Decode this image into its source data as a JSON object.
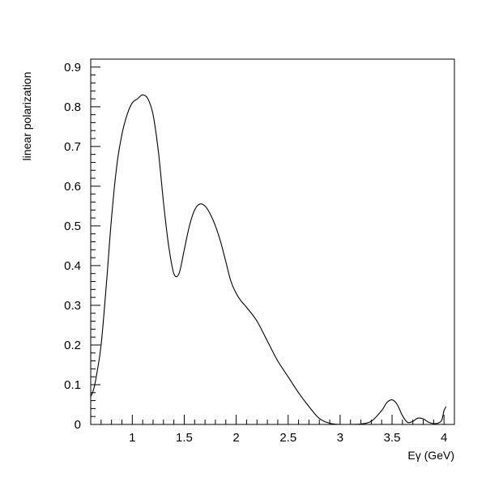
{
  "chart_data": {
    "type": "line",
    "title": "",
    "xlabel": "Eγ (GeV)",
    "ylabel": "linear polarization",
    "xlim": [
      0.6,
      4.1
    ],
    "ylim": [
      0,
      0.92
    ],
    "xticks": [
      1,
      1.5,
      2,
      2.5,
      3,
      3.5,
      4
    ],
    "xtick_labels": [
      "1",
      "1.5",
      "2",
      "2.5",
      "3",
      "3.5",
      "4"
    ],
    "yticks": [
      0,
      0.1,
      0.2,
      0.3,
      0.4,
      0.5,
      0.6,
      0.7,
      0.8,
      0.9
    ],
    "ytick_labels": [
      "0",
      "0.1",
      "0.2",
      "0.3",
      "0.4",
      "0.5",
      "0.6",
      "0.7",
      "0.8",
      "0.9"
    ],
    "grid": false,
    "legend": "none",
    "line_color": "#000000",
    "series": [
      {
        "x": [
          0.6,
          0.63,
          0.66,
          0.7,
          0.75,
          0.8,
          0.85,
          0.9,
          0.95,
          1.0,
          1.05,
          1.1,
          1.15,
          1.2,
          1.25,
          1.3,
          1.35,
          1.4,
          1.45,
          1.5,
          1.55,
          1.6,
          1.65,
          1.7,
          1.75,
          1.8,
          1.85,
          1.9,
          1.95,
          2.0,
          2.05,
          2.1,
          2.2,
          2.3,
          2.4,
          2.5,
          2.6,
          2.7,
          2.8,
          2.9,
          3.0,
          3.1,
          3.2,
          3.3,
          3.4,
          3.45,
          3.5,
          3.55,
          3.6,
          3.65,
          3.7,
          3.75,
          3.8,
          3.85,
          3.9,
          3.95,
          3.98,
          4.0,
          4.02
        ],
        "y": [
          0.07,
          0.09,
          0.13,
          0.2,
          0.35,
          0.52,
          0.65,
          0.73,
          0.78,
          0.81,
          0.82,
          0.83,
          0.82,
          0.78,
          0.69,
          0.56,
          0.45,
          0.38,
          0.38,
          0.44,
          0.5,
          0.54,
          0.555,
          0.55,
          0.53,
          0.5,
          0.46,
          0.41,
          0.36,
          0.33,
          0.31,
          0.295,
          0.26,
          0.21,
          0.16,
          0.12,
          0.08,
          0.045,
          0.015,
          0.003,
          0.0,
          0.0,
          0.001,
          0.008,
          0.035,
          0.055,
          0.062,
          0.05,
          0.022,
          0.005,
          0.008,
          0.016,
          0.014,
          0.006,
          0.002,
          0.004,
          0.012,
          0.035,
          0.045
        ]
      }
    ]
  }
}
